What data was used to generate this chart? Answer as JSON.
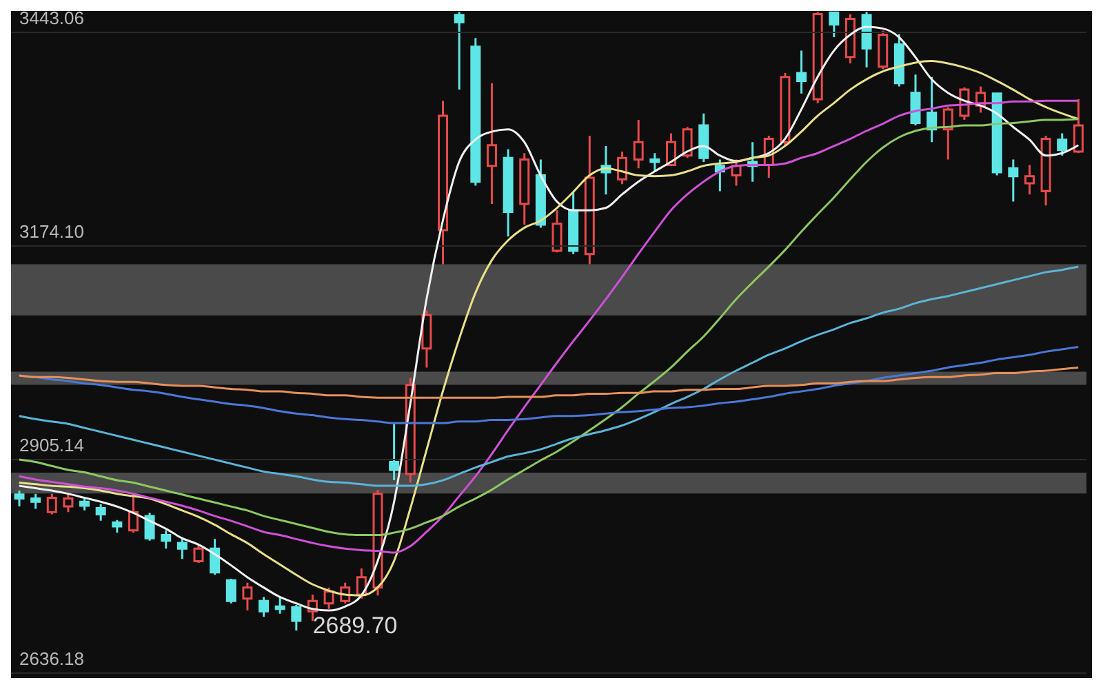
{
  "chart_data": {
    "type": "candlestick",
    "categories": [
      null,
      null,
      null,
      null,
      null,
      null,
      null,
      null,
      null,
      null,
      null,
      null,
      null,
      null,
      null,
      null,
      null,
      null,
      null,
      null,
      null,
      null,
      null,
      null,
      null,
      null,
      null,
      null,
      null,
      null,
      null,
      null,
      null,
      null,
      null,
      null,
      null,
      null,
      null,
      null,
      null,
      null,
      null,
      null,
      null,
      null,
      null,
      null,
      null,
      null,
      null,
      null,
      null,
      null,
      null,
      null,
      null,
      null,
      null,
      null,
      null,
      null,
      null,
      null,
      null,
      null
    ],
    "ohlc": [
      [
        2861,
        2866,
        2846,
        2856
      ],
      [
        2856,
        2862,
        2843,
        2852
      ],
      [
        2839,
        2862,
        2836,
        2857
      ],
      [
        2846,
        2862,
        2839,
        2856
      ],
      [
        2852,
        2856,
        2841,
        2847
      ],
      [
        2844,
        2849,
        2828,
        2836
      ],
      [
        2826,
        2829,
        2813,
        2821
      ],
      [
        2816,
        2862,
        2813,
        2839
      ],
      [
        2834,
        2838,
        2803,
        2806
      ],
      [
        2810,
        2816,
        2793,
        2803
      ],
      [
        2800,
        2805,
        2780,
        2793
      ],
      [
        2777,
        2798,
        2775,
        2793
      ],
      [
        2793,
        2805,
        2760,
        2763
      ],
      [
        2753,
        2755,
        2724,
        2727
      ],
      [
        2730,
        2750,
        2715,
        2744
      ],
      [
        2727,
        2732,
        2707,
        2714
      ],
      [
        2720,
        2732,
        2711,
        2717
      ],
      [
        2719,
        2722,
        2689.7,
        2702
      ],
      [
        2714,
        2735,
        2702,
        2727
      ],
      [
        2724,
        2744,
        2717,
        2739
      ],
      [
        2727,
        2750,
        2724,
        2744
      ],
      [
        2735,
        2768,
        2730,
        2757
      ],
      [
        2744,
        2867,
        2734,
        2862
      ],
      [
        2902,
        2950,
        2879,
        2892
      ],
      [
        2887,
        3008,
        2876,
        2999
      ],
      [
        3045,
        3093,
        3021,
        3087
      ],
      [
        3194,
        3357,
        3151,
        3338
      ],
      [
        3465,
        3469,
        3371,
        3456
      ],
      [
        3425,
        3436,
        3250,
        3255
      ],
      [
        3275,
        3379,
        3227,
        3301
      ],
      [
        3285,
        3296,
        3186,
        3217
      ],
      [
        3227,
        3291,
        3201,
        3283
      ],
      [
        3263,
        3283,
        3197,
        3201
      ],
      [
        3168,
        3219,
        3166,
        3202
      ],
      [
        3219,
        3242,
        3164,
        3168
      ],
      [
        3164,
        3313,
        3151,
        3260
      ],
      [
        3275,
        3300,
        3239,
        3267
      ],
      [
        3258,
        3293,
        3252,
        3285
      ],
      [
        3283,
        3333,
        3272,
        3305
      ],
      [
        3283,
        3291,
        3268,
        3280
      ],
      [
        3276,
        3316,
        3275,
        3305
      ],
      [
        3288,
        3324,
        3285,
        3321
      ],
      [
        3326,
        3341,
        3280,
        3285
      ],
      [
        3275,
        3283,
        3243,
        3268
      ],
      [
        3263,
        3283,
        3250,
        3275
      ],
      [
        3280,
        3305,
        3255,
        3275
      ],
      [
        3276,
        3313,
        3260,
        3309
      ],
      [
        3305,
        3392,
        3300,
        3387
      ],
      [
        3392,
        3420,
        3366,
        3382
      ],
      [
        3359,
        3469,
        3354,
        3466
      ],
      [
        3468,
        3469,
        3437,
        3453
      ],
      [
        3412,
        3466,
        3404,
        3460
      ],
      [
        3465,
        3469,
        3399,
        3423
      ],
      [
        3400,
        3445,
        3397,
        3440
      ],
      [
        3428,
        3441,
        3375,
        3379
      ],
      [
        3367,
        3390,
        3326,
        3329
      ],
      [
        3342,
        3387,
        3305,
        3321
      ],
      [
        3321,
        3349,
        3283,
        3346
      ],
      [
        3338,
        3374,
        3333,
        3371
      ],
      [
        3351,
        3375,
        3342,
        3367
      ],
      [
        3366,
        3367,
        3263,
        3267
      ],
      [
        3272,
        3283,
        3230,
        3262
      ],
      [
        3253,
        3276,
        3239,
        3262
      ],
      [
        3243,
        3313,
        3225,
        3309
      ],
      [
        3308,
        3316,
        3288,
        3295
      ],
      [
        3293,
        3359,
        3291,
        3326
      ]
    ],
    "colors": [
      "#5ee6e6",
      "#5ee6e6",
      "#e84a4a",
      "#e84a4a",
      "#5ee6e6",
      "#5ee6e6",
      "#5ee6e6",
      "#e84a4a",
      "#5ee6e6",
      "#5ee6e6",
      "#5ee6e6",
      "#e84a4a",
      "#5ee6e6",
      "#5ee6e6",
      "#e84a4a",
      "#5ee6e6",
      "#5ee6e6",
      "#5ee6e6",
      "#e84a4a",
      "#e84a4a",
      "#e84a4a",
      "#e84a4a",
      "#e84a4a",
      "#5ee6e6",
      "#e84a4a",
      "#e84a4a",
      "#e84a4a",
      "#5ee6e6",
      "#5ee6e6",
      "#e84a4a",
      "#5ee6e6",
      "#e84a4a",
      "#5ee6e6",
      "#e84a4a",
      "#5ee6e6",
      "#e84a4a",
      "#5ee6e6",
      "#e84a4a",
      "#e84a4a",
      "#5ee6e6",
      "#e84a4a",
      "#e84a4a",
      "#5ee6e6",
      "#5ee6e6",
      "#e84a4a",
      "#5ee6e6",
      "#e84a4a",
      "#e84a4a",
      "#5ee6e6",
      "#e84a4a",
      "#5ee6e6",
      "#e84a4a",
      "#5ee6e6",
      "#e84a4a",
      "#5ee6e6",
      "#5ee6e6",
      "#5ee6e6",
      "#e84a4a",
      "#e84a4a",
      "#e84a4a",
      "#5ee6e6",
      "#5ee6e6",
      "#e84a4a",
      "#e84a4a",
      "#5ee6e6",
      "#e84a4a"
    ],
    "series": [
      {
        "type": "line",
        "color": "#f0f0f0",
        "values": [
          2872,
          2869,
          2866,
          2862,
          2857,
          2852,
          2846,
          2838,
          2828,
          2818,
          2806,
          2798,
          2786,
          2772,
          2757,
          2744,
          2732,
          2724,
          2717,
          2715,
          2720,
          2734,
          2777,
          2851,
          2975,
          3107,
          3206,
          3280,
          3308,
          3318,
          3321,
          3305,
          3263,
          3230,
          3219,
          3219,
          3222,
          3239,
          3255,
          3268,
          3280,
          3293,
          3300,
          3288,
          3281,
          3285,
          3291,
          3309,
          3346,
          3387,
          3420,
          3440,
          3450,
          3448,
          3437,
          3412,
          3384,
          3367,
          3357,
          3351,
          3341,
          3324,
          3308,
          3288,
          3291,
          3301
        ]
      },
      {
        "type": "line",
        "color": "#e8e08a",
        "values": [
          2876,
          2874,
          2872,
          2871,
          2869,
          2866,
          2862,
          2859,
          2856,
          2849,
          2841,
          2833,
          2823,
          2811,
          2800,
          2786,
          2773,
          2760,
          2748,
          2740,
          2735,
          2734,
          2744,
          2777,
          2843,
          2917,
          2991,
          3057,
          3115,
          3156,
          3181,
          3197,
          3206,
          3222,
          3242,
          3263,
          3272,
          3268,
          3263,
          3262,
          3263,
          3268,
          3275,
          3278,
          3280,
          3285,
          3288,
          3300,
          3318,
          3338,
          3354,
          3371,
          3384,
          3394,
          3400,
          3405,
          3407,
          3404,
          3399,
          3392,
          3382,
          3371,
          3359,
          3349,
          3341,
          3334
        ]
      },
      {
        "type": "line",
        "color": "#d050d8",
        "values": [
          2884,
          2880,
          2877,
          2874,
          2871,
          2869,
          2866,
          2862,
          2857,
          2852,
          2847,
          2841,
          2834,
          2828,
          2821,
          2814,
          2810,
          2805,
          2800,
          2796,
          2793,
          2791,
          2790,
          2788,
          2796,
          2814,
          2834,
          2859,
          2884,
          2912,
          2942,
          2971,
          2999,
          3027,
          3054,
          3080,
          3107,
          3135,
          3164,
          3192,
          3219,
          3239,
          3255,
          3268,
          3275,
          3276,
          3276,
          3278,
          3285,
          3291,
          3300,
          3309,
          3319,
          3328,
          3338,
          3344,
          3347,
          3351,
          3352,
          3354,
          3354,
          3356,
          3356,
          3357,
          3357,
          3357
        ]
      },
      {
        "type": "line",
        "color": "#8cc860",
        "values": [
          2905,
          2902,
          2897,
          2892,
          2889,
          2884,
          2879,
          2876,
          2871,
          2866,
          2861,
          2856,
          2851,
          2846,
          2841,
          2834,
          2829,
          2824,
          2819,
          2814,
          2811,
          2810,
          2810,
          2813,
          2818,
          2826,
          2834,
          2846,
          2856,
          2867,
          2880,
          2892,
          2904,
          2915,
          2928,
          2942,
          2956,
          2971,
          2988,
          3004,
          3021,
          3041,
          3060,
          3083,
          3107,
          3128,
          3148,
          3169,
          3192,
          3214,
          3235,
          3258,
          3280,
          3298,
          3311,
          3319,
          3323,
          3324,
          3326,
          3326,
          3328,
          3329,
          3331,
          3333,
          3333,
          3334
        ]
      },
      {
        "type": "line",
        "color": "#5ab4d8",
        "values": [
          2960,
          2956,
          2953,
          2950,
          2945,
          2940,
          2935,
          2930,
          2925,
          2920,
          2915,
          2910,
          2905,
          2900,
          2895,
          2890,
          2887,
          2884,
          2880,
          2877,
          2876,
          2874,
          2872,
          2872,
          2872,
          2874,
          2879,
          2887,
          2895,
          2902,
          2909,
          2913,
          2918,
          2925,
          2932,
          2937,
          2942,
          2948,
          2956,
          2965,
          2975,
          2984,
          2994,
          3006,
          3017,
          3027,
          3037,
          3045,
          3054,
          3062,
          3069,
          3077,
          3083,
          3090,
          3095,
          3102,
          3107,
          3111,
          3116,
          3121,
          3126,
          3131,
          3136,
          3141,
          3144,
          3148
        ]
      },
      {
        "type": "line",
        "color": "#4a78d8",
        "values": [
          3011,
          3009,
          3006,
          3004,
          3001,
          2999,
          2996,
          2993,
          2991,
          2988,
          2984,
          2981,
          2978,
          2975,
          2973,
          2970,
          2966,
          2963,
          2961,
          2958,
          2956,
          2955,
          2953,
          2951,
          2951,
          2951,
          2951,
          2953,
          2953,
          2955,
          2955,
          2956,
          2958,
          2960,
          2960,
          2961,
          2963,
          2965,
          2966,
          2968,
          2970,
          2971,
          2973,
          2976,
          2978,
          2981,
          2984,
          2988,
          2991,
          2994,
          2998,
          3001,
          3004,
          3008,
          3011,
          3014,
          3017,
          3021,
          3024,
          3027,
          3031,
          3034,
          3037,
          3041,
          3044,
          3047
        ]
      },
      {
        "type": "line",
        "color": "#e8905a",
        "values": [
          3011,
          3009,
          3009,
          3008,
          3006,
          3004,
          3003,
          3003,
          3001,
          2999,
          2998,
          2998,
          2996,
          2994,
          2993,
          2991,
          2991,
          2989,
          2988,
          2986,
          2986,
          2984,
          2983,
          2983,
          2983,
          2983,
          2983,
          2983,
          2983,
          2983,
          2984,
          2984,
          2984,
          2986,
          2986,
          2988,
          2988,
          2989,
          2989,
          2991,
          2991,
          2993,
          2993,
          2994,
          2994,
          2996,
          2998,
          2998,
          2999,
          3001,
          3001,
          3003,
          3004,
          3004,
          3006,
          3008,
          3009,
          3009,
          3011,
          3012,
          3014,
          3014,
          3016,
          3017,
          3019,
          3021
        ]
      }
    ],
    "bands": [
      {
        "axis": "y",
        "from": 3086.7,
        "to": 3151,
        "color": "#4a4a4a"
      },
      {
        "axis": "y",
        "from": 2999.3,
        "to": 3015.8,
        "color": "#4a4a4a"
      },
      {
        "axis": "y",
        "from": 2862.3,
        "to": 2888.7,
        "color": "#4a4a4a"
      }
    ],
    "annotations": [
      "2689.70"
    ],
    "ylim": [
      2630,
      3470
    ],
    "yticks": [
      3443.06,
      {
        "value": 3174.1,
        "label": "3174.10"
      },
      2905.14,
      2636.18
    ],
    "grid": "y",
    "tick_labels": "y"
  }
}
